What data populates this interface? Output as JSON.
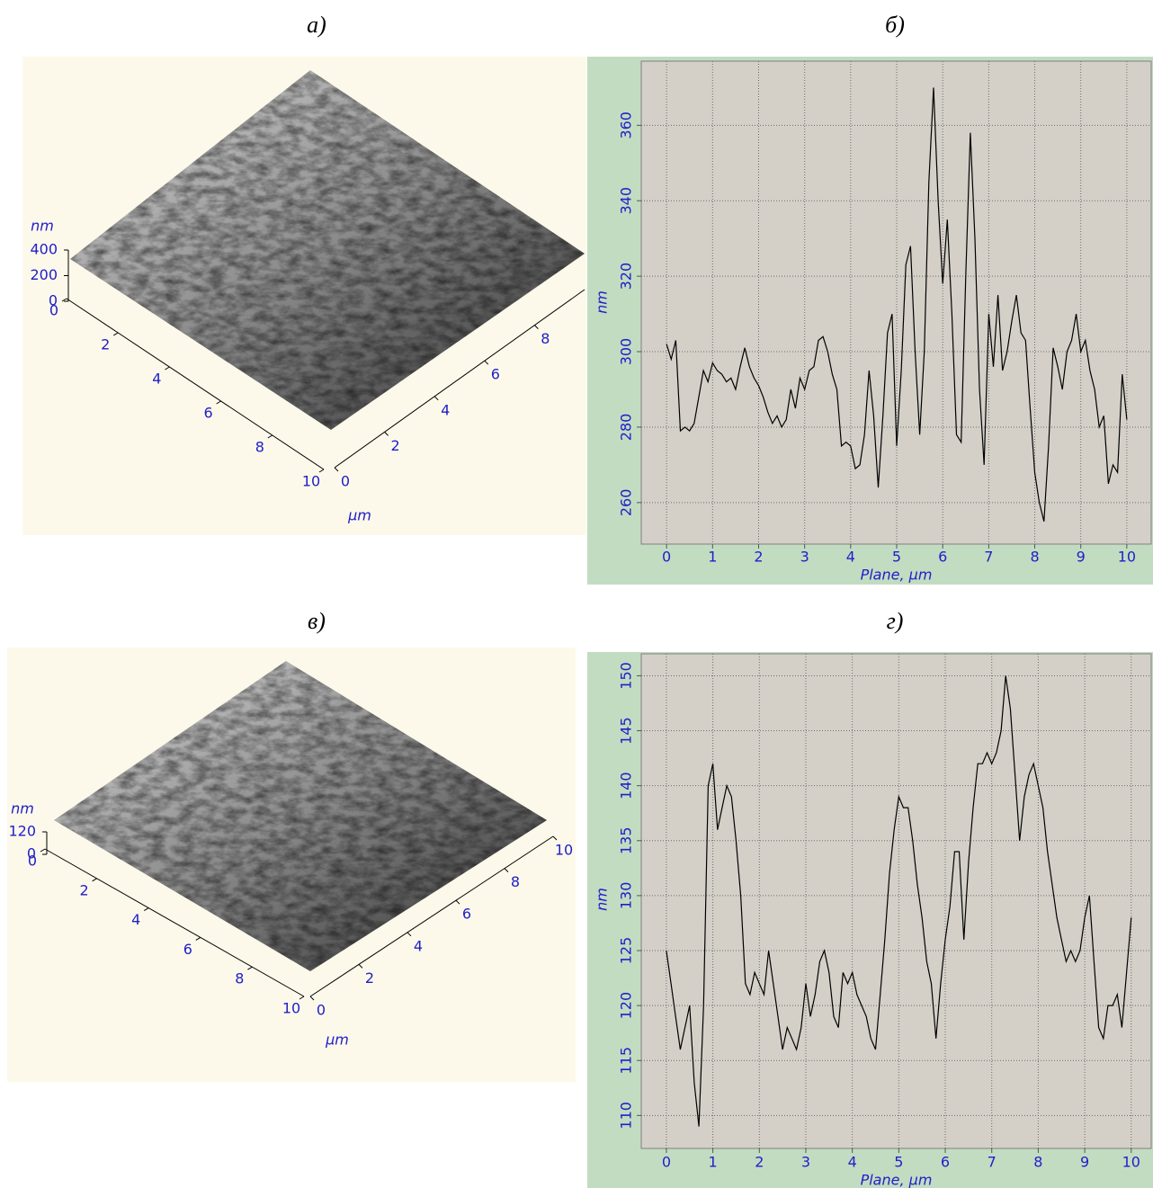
{
  "chart_data": [
    {
      "type": "surface",
      "panel_label": "а)",
      "xlim": [
        0,
        10
      ],
      "ylim": [
        0,
        10
      ],
      "zlim": [
        0,
        400
      ],
      "xticks": [
        0,
        2,
        4,
        6,
        8,
        10
      ],
      "yticks": [
        0,
        2,
        4,
        6,
        8
      ],
      "zticks": [
        0,
        200,
        400
      ],
      "xlabel": "µm",
      "zlabel": "nm"
    },
    {
      "type": "line",
      "panel_label": "б)",
      "xlabel": "Plane, µm",
      "ylabel": "nm",
      "color": "#000000",
      "grid": true,
      "xlim": [
        -0.55,
        10.53
      ],
      "ylim": [
        249,
        377
      ],
      "xticks": [
        0,
        1,
        2,
        3,
        4,
        5,
        6,
        7,
        8,
        9,
        10
      ],
      "yticks": [
        260,
        280,
        300,
        320,
        340,
        360
      ],
      "x": [
        0,
        0.1,
        0.2,
        0.3,
        0.4,
        0.5,
        0.6,
        0.7,
        0.8,
        0.9,
        1,
        1.1,
        1.2,
        1.3,
        1.4,
        1.5,
        1.6,
        1.7,
        1.8,
        1.9,
        2,
        2.1,
        2.2,
        2.3,
        2.4,
        2.5,
        2.6,
        2.7,
        2.8,
        2.9,
        3,
        3.1,
        3.2,
        3.3,
        3.4,
        3.5,
        3.6,
        3.7,
        3.8,
        3.9,
        4,
        4.1,
        4.2,
        4.3,
        4.4,
        4.5,
        4.6,
        4.7,
        4.8,
        4.9,
        5,
        5.1,
        5.2,
        5.3,
        5.4,
        5.5,
        5.6,
        5.7,
        5.8,
        5.9,
        6,
        6.1,
        6.2,
        6.3,
        6.4,
        6.5,
        6.6,
        6.7,
        6.8,
        6.9,
        7,
        7.1,
        7.2,
        7.3,
        7.4,
        7.5,
        7.6,
        7.7,
        7.8,
        7.9,
        8,
        8.1,
        8.2,
        8.3,
        8.4,
        8.5,
        8.6,
        8.7,
        8.8,
        8.9,
        9,
        9.1,
        9.2,
        9.3,
        9.4,
        9.5,
        9.6,
        9.7,
        9.8,
        9.9,
        10
      ],
      "values": [
        302,
        298,
        303,
        279,
        280,
        279,
        281,
        288,
        295,
        292,
        297,
        295,
        294,
        292,
        293,
        290,
        296,
        301,
        296,
        293,
        291,
        288,
        284,
        281,
        283,
        280,
        282,
        290,
        285,
        293,
        290,
        295,
        296,
        303,
        304,
        300,
        294,
        290,
        275,
        276,
        275,
        269,
        270,
        278,
        295,
        283,
        264,
        283,
        305,
        310,
        275,
        295,
        323,
        328,
        300,
        278,
        300,
        345,
        370,
        340,
        318,
        335,
        310,
        278,
        276,
        320,
        358,
        330,
        290,
        270,
        310,
        296,
        315,
        295,
        300,
        308,
        315,
        305,
        303,
        285,
        268,
        260,
        255,
        275,
        301,
        296,
        290,
        300,
        303,
        310,
        300,
        303,
        295,
        290,
        280,
        283,
        265,
        270,
        268,
        294,
        282
      ]
    },
    {
      "type": "surface",
      "panel_label": "в)",
      "xlim": [
        0,
        10
      ],
      "ylim": [
        0,
        10
      ],
      "zlim": [
        0,
        120
      ],
      "xticks": [
        0,
        2,
        4,
        6,
        8,
        10
      ],
      "yticks": [
        0,
        2,
        4,
        6,
        8,
        10
      ],
      "zticks": [
        0,
        120
      ],
      "xlabel": "µm",
      "zlabel": "nm"
    },
    {
      "type": "line",
      "panel_label": "г)",
      "xlabel": "Plane, µm",
      "ylabel": "nm",
      "color": "#000000",
      "grid": true,
      "xlim": [
        -0.54,
        10.43
      ],
      "ylim": [
        107,
        152
      ],
      "xticks": [
        0,
        1,
        2,
        3,
        4,
        5,
        6,
        7,
        8,
        9,
        10
      ],
      "yticks": [
        110,
        115,
        120,
        125,
        130,
        135,
        140,
        145,
        150
      ],
      "x": [
        0,
        0.1,
        0.2,
        0.3,
        0.4,
        0.5,
        0.6,
        0.7,
        0.8,
        0.9,
        1,
        1.1,
        1.2,
        1.3,
        1.4,
        1.5,
        1.6,
        1.7,
        1.8,
        1.9,
        2,
        2.1,
        2.2,
        2.3,
        2.4,
        2.5,
        2.6,
        2.7,
        2.8,
        2.9,
        3,
        3.1,
        3.2,
        3.3,
        3.4,
        3.5,
        3.6,
        3.7,
        3.8,
        3.9,
        4,
        4.1,
        4.2,
        4.3,
        4.4,
        4.5,
        4.6,
        4.7,
        4.8,
        4.9,
        5,
        5.1,
        5.2,
        5.3,
        5.4,
        5.5,
        5.6,
        5.7,
        5.8,
        5.9,
        6,
        6.1,
        6.2,
        6.3,
        6.4,
        6.5,
        6.6,
        6.7,
        6.8,
        6.9,
        7,
        7.1,
        7.2,
        7.3,
        7.4,
        7.5,
        7.6,
        7.7,
        7.8,
        7.9,
        8,
        8.1,
        8.2,
        8.3,
        8.4,
        8.5,
        8.6,
        8.7,
        8.8,
        8.9,
        9,
        9.1,
        9.2,
        9.3,
        9.4,
        9.5,
        9.6,
        9.7,
        9.8,
        9.9,
        10
      ],
      "values": [
        125,
        122,
        119,
        116,
        118,
        120,
        113,
        109,
        120,
        140,
        142,
        136,
        138,
        140,
        139,
        135,
        130,
        122,
        121,
        123,
        122,
        121,
        125,
        122,
        119,
        116,
        118,
        117,
        116,
        118,
        122,
        119,
        121,
        124,
        125,
        123,
        119,
        118,
        123,
        122,
        123,
        121,
        120,
        119,
        117,
        116,
        121,
        126,
        132,
        136,
        139,
        138,
        138,
        135,
        131,
        128,
        124,
        122,
        117,
        122,
        126,
        129,
        134,
        134,
        126,
        133,
        138,
        142,
        142,
        143,
        142,
        143,
        145,
        150,
        147,
        141,
        135,
        139,
        141,
        142,
        140,
        138,
        134,
        131,
        128,
        126,
        124,
        125,
        124,
        125,
        128,
        130,
        124,
        118,
        117,
        120,
        120,
        121,
        118,
        123,
        128
      ]
    }
  ]
}
